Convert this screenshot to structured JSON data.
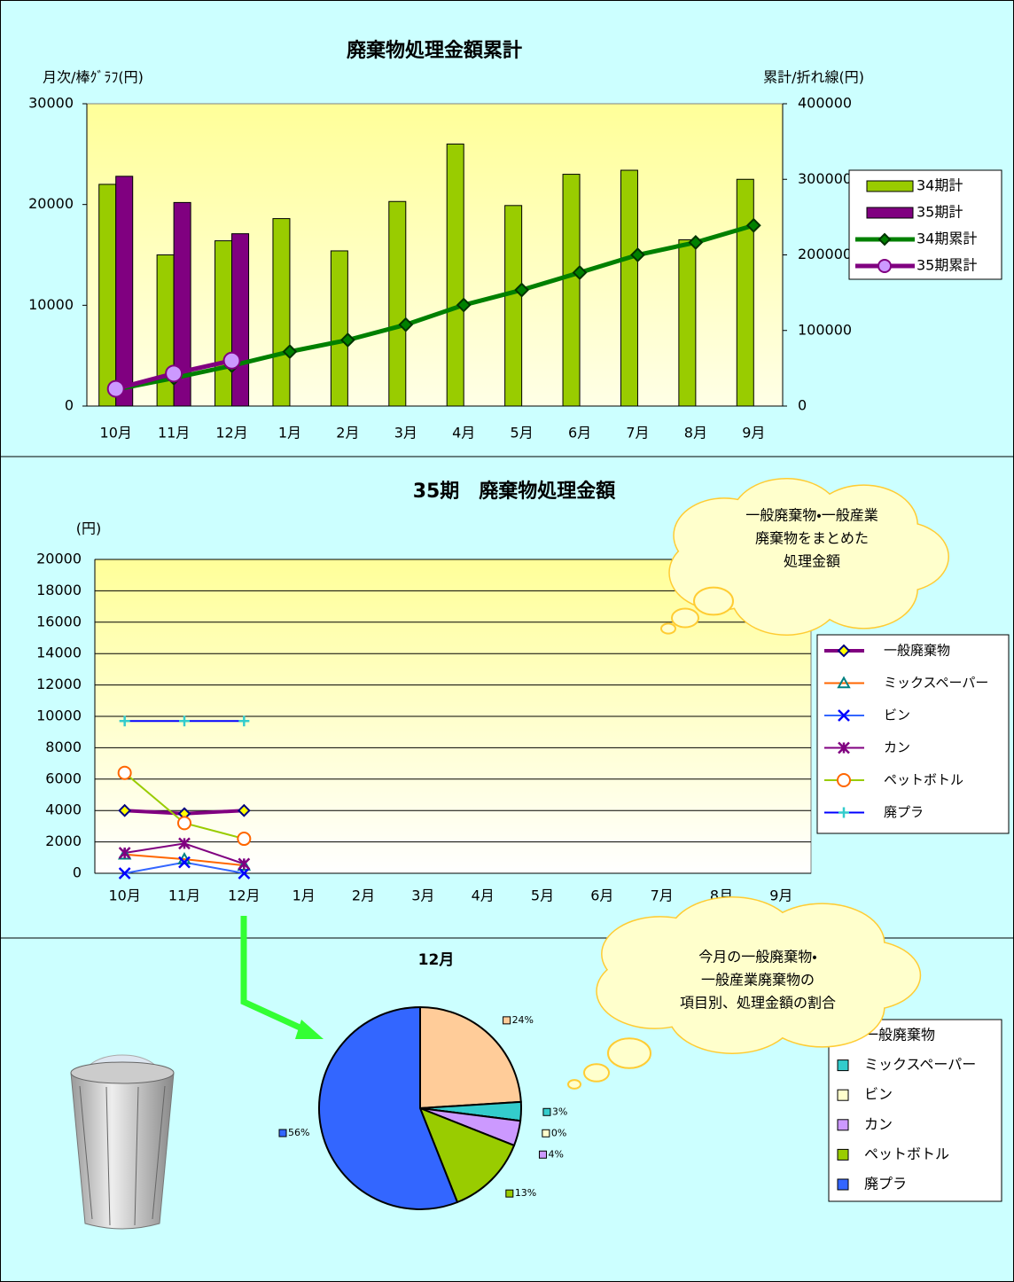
{
  "chart_data": [
    {
      "type": "combo",
      "title": "廃棄物処理金額累計",
      "ylabel": "月次/棒ｸﾞﾗﾌ(円)",
      "y2label": "累計/折れ線(円)",
      "categories": [
        "10月",
        "11月",
        "12月",
        "1月",
        "2月",
        "3月",
        "4月",
        "5月",
        "6月",
        "7月",
        "8月",
        "9月"
      ],
      "ylim": [
        0,
        30000
      ],
      "yticks": [
        0,
        10000,
        20000,
        30000
      ],
      "y2lim": [
        0,
        400000
      ],
      "y2ticks": [
        0,
        100000,
        200000,
        300000,
        400000
      ],
      "legend": "right",
      "series": [
        {
          "name": "34期計",
          "kind": "bar",
          "color": "#99cc00",
          "values": [
            22000,
            15000,
            16400,
            18600,
            15400,
            20300,
            26000,
            19900,
            23000,
            23400,
            16500,
            22500
          ]
        },
        {
          "name": "35期計",
          "kind": "bar",
          "color": "#800080",
          "values": [
            22800,
            20200,
            17100,
            null,
            null,
            null,
            null,
            null,
            null,
            null,
            null,
            null
          ]
        },
        {
          "name": "34期累計",
          "kind": "line",
          "axis": "y2",
          "color": "#008000",
          "marker": "diamond",
          "marker_color": "#008000",
          "values": [
            22000,
            37000,
            53400,
            72000,
            87400,
            107700,
            133700,
            153600,
            176600,
            200000,
            216500,
            239000
          ]
        },
        {
          "name": "35期累計",
          "kind": "line",
          "axis": "y2",
          "color": "#800080",
          "marker": "circle",
          "marker_color": "#cc99ff",
          "values": [
            22800,
            43000,
            60100,
            null,
            null,
            null,
            null,
            null,
            null,
            null,
            null,
            null
          ]
        }
      ]
    },
    {
      "type": "line",
      "title": "35期　廃棄物処理金額",
      "ylabel": "(円)",
      "annotation": [
        "一般廃棄物・一般産業",
        "廃棄物をまとめた",
        "処理金額"
      ],
      "categories": [
        "10月",
        "11月",
        "12月",
        "1月",
        "2月",
        "3月",
        "4月",
        "5月",
        "6月",
        "7月",
        "8月",
        "9月"
      ],
      "ylim": [
        0,
        20000
      ],
      "yticks": [
        0,
        2000,
        4000,
        6000,
        8000,
        10000,
        12000,
        14000,
        16000,
        18000,
        20000
      ],
      "grid": true,
      "legend": "right",
      "series": [
        {
          "name": "一般廃棄物",
          "color": "#800080",
          "width": 4,
          "marker": "diamond",
          "marker_color": "#000080",
          "marker_fill": "#ffff00",
          "values": [
            4000,
            3800,
            4000,
            null,
            null,
            null,
            null,
            null,
            null,
            null,
            null,
            null
          ]
        },
        {
          "name": "ミックスペーパー",
          "color": "#ff6600",
          "width": 2,
          "marker": "triangle",
          "marker_color": "#008080",
          "marker_fill": "none",
          "values": [
            1200,
            900,
            500,
            null,
            null,
            null,
            null,
            null,
            null,
            null,
            null,
            null
          ]
        },
        {
          "name": "ビン",
          "color": "#3366ff",
          "width": 2,
          "marker": "x",
          "marker_color": "#0000ff",
          "marker_fill": "none",
          "values": [
            0,
            700,
            0,
            null,
            null,
            null,
            null,
            null,
            null,
            null,
            null,
            null
          ]
        },
        {
          "name": "カン",
          "color": "#800080",
          "width": 2,
          "marker": "star",
          "marker_color": "#800080",
          "marker_fill": "none",
          "values": [
            1300,
            1900,
            600,
            null,
            null,
            null,
            null,
            null,
            null,
            null,
            null,
            null
          ]
        },
        {
          "name": "ペットボトル",
          "color": "#99cc00",
          "width": 2,
          "marker": "circle",
          "marker_color": "#ff6600",
          "marker_fill": "#ffffff",
          "values": [
            6400,
            3200,
            2200,
            null,
            null,
            null,
            null,
            null,
            null,
            null,
            null,
            null
          ]
        },
        {
          "name": "廃プラ",
          "color": "#0000ff",
          "width": 2,
          "marker": "plus",
          "marker_color": "#33cccc",
          "marker_fill": "none",
          "values": [
            9700,
            9700,
            9700,
            null,
            null,
            null,
            null,
            null,
            null,
            null,
            null,
            null
          ]
        }
      ]
    },
    {
      "type": "pie",
      "title": "12月",
      "annotation": [
        "今月の一般廃棄物・",
        "一般産業廃棄物の",
        "項目別、処理金額の割合"
      ],
      "categories": [
        "一般廃棄物",
        "ミックスペーパー",
        "ビン",
        "カン",
        "ペットボトル",
        "廃プラ"
      ],
      "values": [
        24,
        3,
        0,
        4,
        13,
        56
      ],
      "value_labels": [
        "24%",
        "3%",
        "0%",
        "4%",
        "13%",
        "56%"
      ],
      "colors": [
        "#ffcc99",
        "#33cccc",
        "#ffffcc",
        "#cc99ff",
        "#99cc00",
        "#3366ff"
      ],
      "legend": "right"
    }
  ]
}
